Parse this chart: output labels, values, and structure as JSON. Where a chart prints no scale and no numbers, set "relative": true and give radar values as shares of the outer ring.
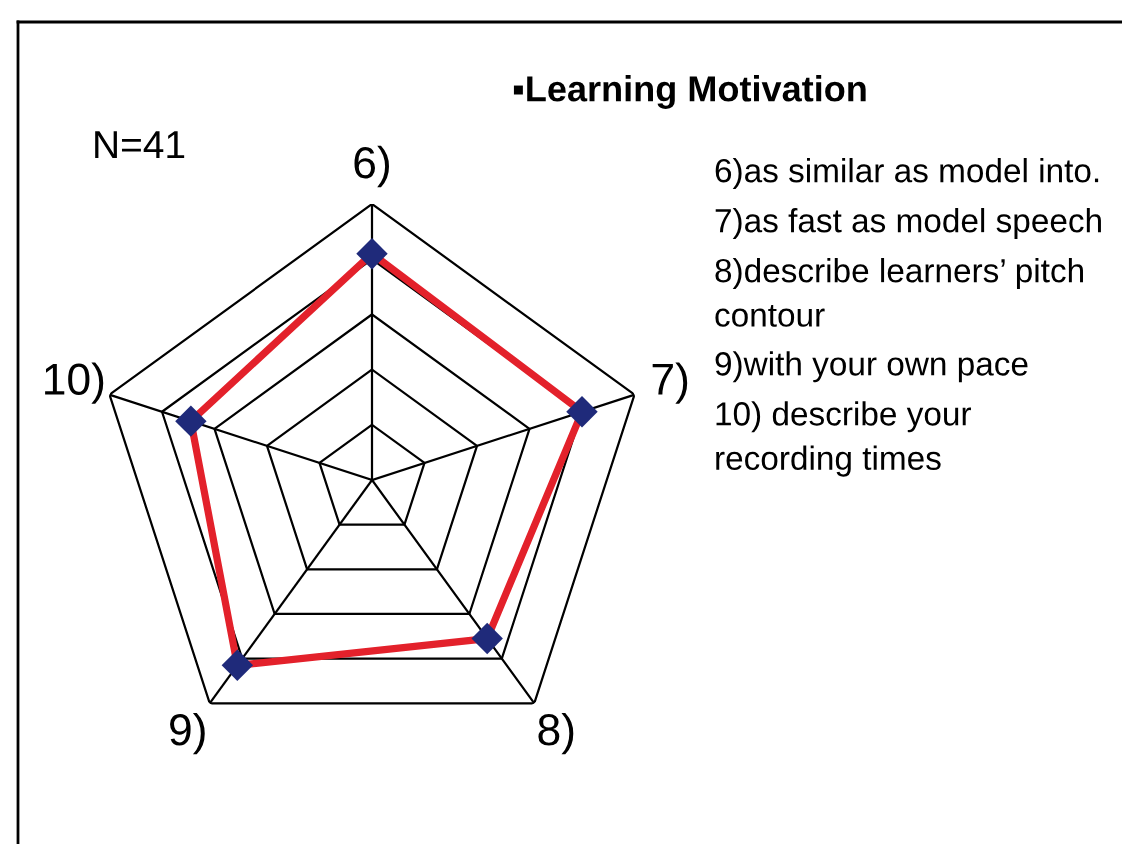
{
  "chart_data": {
    "type": "radar",
    "title": "▪Learning Motivation",
    "categories": [
      "6)",
      "7)",
      "8)",
      "9)",
      "10)"
    ],
    "relative": true,
    "series": [
      {
        "color": "#e3212b",
        "colors": [
          "#1f2a7a",
          "#1f2a7a",
          "#1f2a7a",
          "#1f2a7a",
          "#1f2a7a"
        ],
        "values": [
          0.82,
          0.8,
          0.71,
          0.83,
          0.69
        ]
      }
    ],
    "marker": "diamond",
    "grid": true,
    "annotations": [
      "N=41",
      "6)as similar as model into.",
      "7)as fast as model speech",
      "8)describe learners’ pitch contour",
      "9)with your own pace",
      "10) describe your recording times"
    ]
  }
}
